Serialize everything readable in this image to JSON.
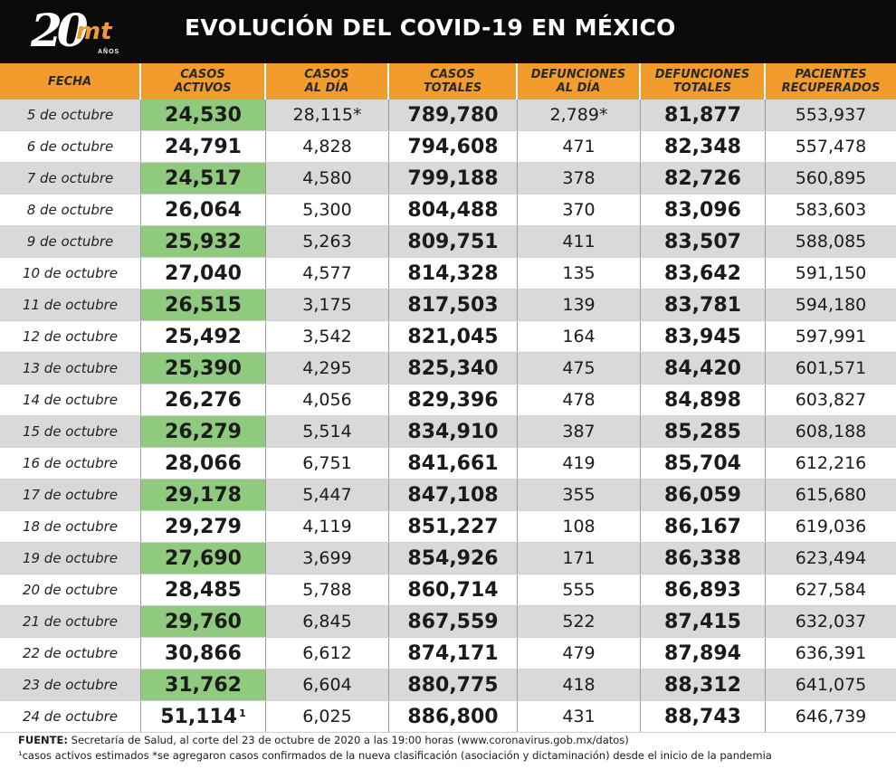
{
  "header": {
    "logo": {
      "number": "20",
      "brand": "mt",
      "anos": "AÑOS"
    },
    "title": "EVOLUCIÓN DEL COVID-19 EN MÉXICO"
  },
  "columns": [
    "FECHA",
    "CASOS\nACTIVOS",
    "CASOS\nAL DÍA",
    "CASOS\nTOTALES",
    "DEFUNCIONES\nAL DÍA",
    "DEFUNCIONES\nTOTALES",
    "PACIENTES\nRECUPERADOS"
  ],
  "rows": [
    {
      "fecha": "5 de octubre",
      "activos": "24,530",
      "activos_note": "",
      "dia": "28,115*",
      "totales": "789,780",
      "def_dia": "2,789*",
      "def_totales": "81,877",
      "recuperados": "553,937"
    },
    {
      "fecha": "6 de octubre",
      "activos": "24,791",
      "activos_note": "",
      "dia": "4,828",
      "totales": "794,608",
      "def_dia": "471",
      "def_totales": "82,348",
      "recuperados": "557,478"
    },
    {
      "fecha": "7 de octubre",
      "activos": "24,517",
      "activos_note": "",
      "dia": "4,580",
      "totales": "799,188",
      "def_dia": "378",
      "def_totales": "82,726",
      "recuperados": "560,895"
    },
    {
      "fecha": "8 de octubre",
      "activos": "26,064",
      "activos_note": "",
      "dia": "5,300",
      "totales": "804,488",
      "def_dia": "370",
      "def_totales": "83,096",
      "recuperados": "583,603"
    },
    {
      "fecha": "9 de octubre",
      "activos": "25,932",
      "activos_note": "",
      "dia": "5,263",
      "totales": "809,751",
      "def_dia": "411",
      "def_totales": "83,507",
      "recuperados": "588,085"
    },
    {
      "fecha": "10 de octubre",
      "activos": "27,040",
      "activos_note": "",
      "dia": "4,577",
      "totales": "814,328",
      "def_dia": "135",
      "def_totales": "83,642",
      "recuperados": "591,150"
    },
    {
      "fecha": "11 de octubre",
      "activos": "26,515",
      "activos_note": "",
      "dia": "3,175",
      "totales": "817,503",
      "def_dia": "139",
      "def_totales": "83,781",
      "recuperados": "594,180"
    },
    {
      "fecha": "12 de octubre",
      "activos": "25,492",
      "activos_note": "",
      "dia": "3,542",
      "totales": "821,045",
      "def_dia": "164",
      "def_totales": "83,945",
      "recuperados": "597,991"
    },
    {
      "fecha": "13 de octubre",
      "activos": "25,390",
      "activos_note": "",
      "dia": "4,295",
      "totales": "825,340",
      "def_dia": "475",
      "def_totales": "84,420",
      "recuperados": "601,571"
    },
    {
      "fecha": "14 de octubre",
      "activos": "26,276",
      "activos_note": "",
      "dia": "4,056",
      "totales": "829,396",
      "def_dia": "478",
      "def_totales": "84,898",
      "recuperados": "603,827"
    },
    {
      "fecha": "15 de octubre",
      "activos": "26,279",
      "activos_note": "",
      "dia": "5,514",
      "totales": "834,910",
      "def_dia": "387",
      "def_totales": "85,285",
      "recuperados": "608,188"
    },
    {
      "fecha": "16 de octubre",
      "activos": "28,066",
      "activos_note": "",
      "dia": "6,751",
      "totales": "841,661",
      "def_dia": "419",
      "def_totales": "85,704",
      "recuperados": "612,216"
    },
    {
      "fecha": "17 de octubre",
      "activos": "29,178",
      "activos_note": "",
      "dia": "5,447",
      "totales": "847,108",
      "def_dia": "355",
      "def_totales": "86,059",
      "recuperados": "615,680"
    },
    {
      "fecha": "18 de octubre",
      "activos": "29,279",
      "activos_note": "",
      "dia": "4,119",
      "totales": "851,227",
      "def_dia": "108",
      "def_totales": "86,167",
      "recuperados": "619,036"
    },
    {
      "fecha": "19 de octubre",
      "activos": "27,690",
      "activos_note": "",
      "dia": "3,699",
      "totales": "854,926",
      "def_dia": "171",
      "def_totales": "86,338",
      "recuperados": "623,494"
    },
    {
      "fecha": "20 de octubre",
      "activos": "28,485",
      "activos_note": "",
      "dia": "5,788",
      "totales": "860,714",
      "def_dia": "555",
      "def_totales": "86,893",
      "recuperados": "627,584"
    },
    {
      "fecha": "21 de octubre",
      "activos": "29,760",
      "activos_note": "",
      "dia": "6,845",
      "totales": "867,559",
      "def_dia": "522",
      "def_totales": "87,415",
      "recuperados": "632,037"
    },
    {
      "fecha": "22 de octubre",
      "activos": "30,866",
      "activos_note": "",
      "dia": "6,612",
      "totales": "874,171",
      "def_dia": "479",
      "def_totales": "87,894",
      "recuperados": "636,391"
    },
    {
      "fecha": "23 de octubre",
      "activos": "31,762",
      "activos_note": "",
      "dia": "6,604",
      "totales": "880,775",
      "def_dia": "418",
      "def_totales": "88,312",
      "recuperados": "641,075"
    },
    {
      "fecha": "24 de octubre",
      "activos": "51,114",
      "activos_note": "1",
      "dia": "6,025",
      "totales": "886,800",
      "def_dia": "431",
      "def_totales": "88,743",
      "recuperados": "646,739"
    }
  ],
  "footer": {
    "source_label": "FUENTE:",
    "source_text": " Secretaría de Salud, al corte del 23 de octubre de 2020 a las 19:00 horas (www.coronavirus.gob.mx/datos)",
    "note_text": "¹casos activos estimados *se agregaron casos confirmados de la nueva clasificación (asociación y dictaminación) desde el inicio de la pandemia"
  },
  "colors": {
    "header_bg": "#f39c2e",
    "active_green": "#8fca7e",
    "stripe_gray": "#d9d9d9",
    "topbar": "#0a0a0a"
  }
}
